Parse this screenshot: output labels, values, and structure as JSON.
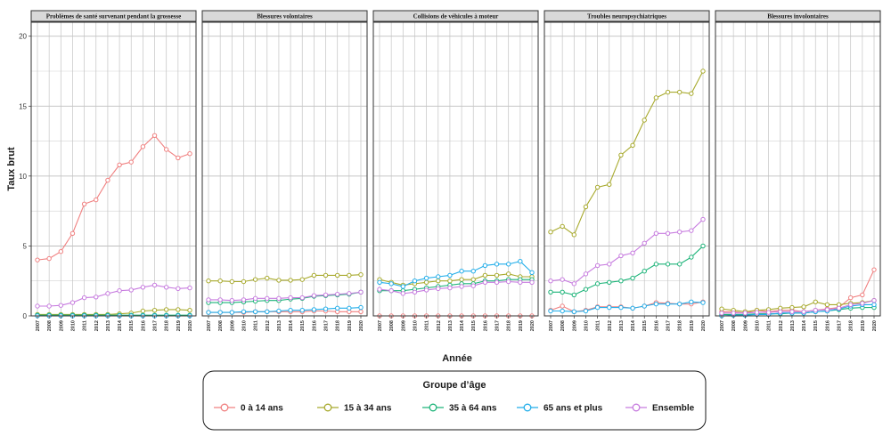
{
  "chart_data": {
    "type": "line",
    "ylabel": "Taux brut",
    "xlabel": "Année",
    "ylim": [
      0,
      21
    ],
    "yticks": [
      0,
      5,
      10,
      15,
      20
    ],
    "x": [
      2007,
      2008,
      2009,
      2010,
      2011,
      2012,
      2013,
      2014,
      2015,
      2016,
      2017,
      2018,
      2019,
      2020
    ],
    "legend": {
      "title": "Groupe d’âge",
      "position": "bottom",
      "entries": [
        {
          "name": "0 à 14 ans",
          "color": "#F08080"
        },
        {
          "name": "15 à 34 ans",
          "color": "#A8AA2E"
        },
        {
          "name": "35 à 64 ans",
          "color": "#1FB47A"
        },
        {
          "name": "65 ans et plus",
          "color": "#22AEEA"
        },
        {
          "name": "Ensemble",
          "color": "#C77CDF"
        }
      ]
    },
    "panels": [
      {
        "title": "Problèmes de santé survenant pendant la grossesse",
        "series": [
          {
            "name": "0 à 14 ans",
            "values": [
              4.0,
              4.1,
              4.6,
              5.9,
              8.0,
              8.3,
              9.7,
              10.8,
              11.0,
              12.1,
              12.9,
              11.9,
              11.3,
              11.6
            ]
          },
          {
            "name": "15 à 34 ans",
            "values": [
              0.1,
              0.1,
              0.1,
              0.1,
              0.1,
              0.1,
              0.1,
              0.15,
              0.2,
              0.35,
              0.4,
              0.45,
              0.45,
              0.4
            ]
          },
          {
            "name": "35 à 64 ans",
            "values": [
              0.05,
              0.05,
              0.05,
              0.05,
              0.05,
              0.05,
              0.05,
              0.05,
              0.05,
              0.05,
              0.05,
              0.05,
              0.05,
              0.05
            ]
          },
          {
            "name": "65 ans et plus",
            "values": [
              0.0,
              0.0,
              0.0,
              0.0,
              0.0,
              0.0,
              0.0,
              0.0,
              0.0,
              0.0,
              0.0,
              0.0,
              0.0,
              0.0
            ]
          },
          {
            "name": "Ensemble",
            "values": [
              0.7,
              0.7,
              0.75,
              0.95,
              1.3,
              1.35,
              1.6,
              1.8,
              1.85,
              2.05,
              2.2,
              2.05,
              1.95,
              2.0
            ]
          }
        ]
      },
      {
        "title": "Blessures volontaires",
        "series": [
          {
            "name": "0 à 14 ans",
            "values": [
              0.25,
              0.25,
              0.25,
              0.25,
              0.3,
              0.3,
              0.3,
              0.3,
              0.3,
              0.35,
              0.35,
              0.3,
              0.3,
              0.3
            ]
          },
          {
            "name": "15 à 34 ans",
            "values": [
              2.5,
              2.5,
              2.45,
              2.45,
              2.6,
              2.7,
              2.55,
              2.55,
              2.6,
              2.9,
              2.9,
              2.9,
              2.9,
              2.95
            ]
          },
          {
            "name": "35 à 64 ans",
            "values": [
              0.95,
              0.95,
              0.95,
              1.0,
              1.05,
              1.1,
              1.1,
              1.2,
              1.25,
              1.4,
              1.45,
              1.5,
              1.55,
              1.7
            ]
          },
          {
            "name": "65 ans et plus",
            "values": [
              0.25,
              0.25,
              0.25,
              0.3,
              0.3,
              0.3,
              0.35,
              0.4,
              0.4,
              0.45,
              0.5,
              0.55,
              0.55,
              0.6
            ]
          },
          {
            "name": "Ensemble",
            "values": [
              1.15,
              1.15,
              1.1,
              1.15,
              1.25,
              1.25,
              1.25,
              1.3,
              1.3,
              1.45,
              1.5,
              1.55,
              1.6,
              1.7
            ]
          }
        ]
      },
      {
        "title": "Collisions de véhicules à moteur",
        "series": [
          {
            "name": "0 à 14 ans",
            "values": [
              0.0,
              0.0,
              0.0,
              0.0,
              0.0,
              0.0,
              0.0,
              0.0,
              0.0,
              0.0,
              0.0,
              0.0,
              0.0,
              0.0
            ]
          },
          {
            "name": "15 à 34 ans",
            "values": [
              2.6,
              2.4,
              2.2,
              2.3,
              2.4,
              2.5,
              2.5,
              2.6,
              2.6,
              2.9,
              2.9,
              3.0,
              2.8,
              2.8
            ]
          },
          {
            "name": "35 à 64 ans",
            "values": [
              1.8,
              1.8,
              1.8,
              1.9,
              2.0,
              2.1,
              2.2,
              2.3,
              2.3,
              2.5,
              2.5,
              2.6,
              2.6,
              2.6
            ]
          },
          {
            "name": "65 ans et plus",
            "values": [
              2.4,
              2.3,
              2.1,
              2.5,
              2.7,
              2.8,
              2.9,
              3.2,
              3.2,
              3.6,
              3.7,
              3.7,
              3.9,
              3.1
            ]
          },
          {
            "name": "Ensemble",
            "values": [
              1.9,
              1.8,
              1.6,
              1.7,
              1.85,
              1.95,
              2.0,
              2.1,
              2.15,
              2.4,
              2.4,
              2.45,
              2.4,
              2.4
            ]
          }
        ]
      },
      {
        "title": "Troubles neuropsychiatriques",
        "series": [
          {
            "name": "0 à 14 ans",
            "values": [
              0.4,
              0.7,
              0.3,
              0.4,
              0.65,
              0.65,
              0.65,
              0.55,
              0.7,
              0.95,
              0.9,
              0.85,
              0.85,
              1.0
            ]
          },
          {
            "name": "15 à 34 ans",
            "values": [
              6.0,
              6.4,
              5.8,
              7.8,
              9.2,
              9.4,
              11.5,
              12.2,
              14.0,
              15.6,
              16.0,
              16.0,
              15.9,
              17.5
            ]
          },
          {
            "name": "35 à 64 ans",
            "values": [
              1.7,
              1.7,
              1.5,
              1.9,
              2.3,
              2.4,
              2.5,
              2.7,
              3.2,
              3.7,
              3.7,
              3.7,
              4.2,
              5.0
            ]
          },
          {
            "name": "65 ans et plus",
            "values": [
              0.35,
              0.35,
              0.3,
              0.35,
              0.6,
              0.6,
              0.6,
              0.55,
              0.7,
              0.85,
              0.85,
              0.85,
              1.0,
              0.95
            ]
          },
          {
            "name": "Ensemble",
            "values": [
              2.5,
              2.6,
              2.3,
              3.0,
              3.6,
              3.7,
              4.3,
              4.5,
              5.2,
              5.9,
              5.9,
              6.0,
              6.1,
              6.9
            ]
          }
        ]
      },
      {
        "title": "Blessures involontaires",
        "series": [
          {
            "name": "0 à 14 ans",
            "values": [
              0.3,
              0.3,
              0.2,
              0.4,
              0.3,
              0.4,
              0.4,
              0.3,
              0.4,
              0.5,
              0.6,
              1.3,
              1.5,
              3.3
            ]
          },
          {
            "name": "15 à 34 ans",
            "values": [
              0.5,
              0.4,
              0.3,
              0.4,
              0.45,
              0.55,
              0.6,
              0.65,
              1.0,
              0.8,
              0.8,
              0.9,
              0.95,
              1.1
            ]
          },
          {
            "name": "35 à 64 ans",
            "values": [
              0.1,
              0.1,
              0.1,
              0.15,
              0.15,
              0.15,
              0.2,
              0.2,
              0.3,
              0.35,
              0.45,
              0.55,
              0.6,
              0.6
            ]
          },
          {
            "name": "65 ans et plus",
            "values": [
              0.0,
              0.05,
              0.05,
              0.1,
              0.1,
              0.2,
              0.2,
              0.2,
              0.3,
              0.35,
              0.5,
              0.7,
              0.8,
              0.8
            ]
          },
          {
            "name": "Ensemble",
            "values": [
              0.2,
              0.2,
              0.2,
              0.25,
              0.25,
              0.3,
              0.3,
              0.3,
              0.4,
              0.45,
              0.55,
              0.8,
              0.9,
              1.1
            ]
          }
        ]
      }
    ]
  }
}
